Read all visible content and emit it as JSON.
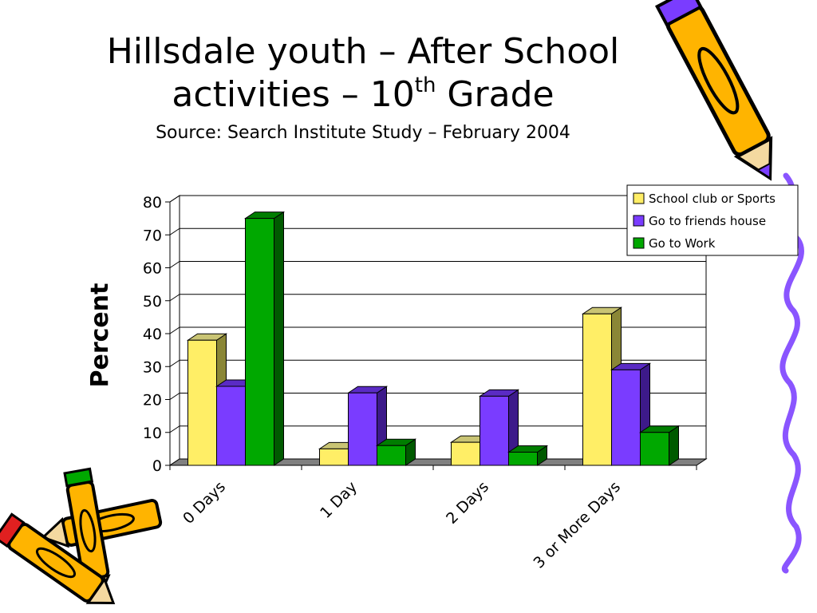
{
  "slide": {
    "title_line1": "Hillsdale youth – After School",
    "title_line2_pre": "activities – 10",
    "title_line2_sup": "th",
    "title_line2_post": " Grade",
    "source": "Source: Search Institute Study – February 2004"
  },
  "chart_data": {
    "type": "bar",
    "title": "",
    "ylabel": "Percent",
    "xlabel": "",
    "ylim": [
      0,
      80
    ],
    "yticks": [
      0,
      10,
      20,
      30,
      40,
      50,
      60,
      70,
      80
    ],
    "grid": true,
    "legend_position": "top-right",
    "categories": [
      "0 Days",
      "1 Day",
      "2 Days",
      "3 or More Days"
    ],
    "series": [
      {
        "name": "School club or Sports",
        "color": "#ffee66",
        "side": "#8a8636",
        "top": "#c9c474",
        "values": [
          38,
          5,
          7,
          46
        ]
      },
      {
        "name": "Go to friends house",
        "color": "#7a3cff",
        "side": "#3d1a8a",
        "top": "#5a2bc4",
        "values": [
          24,
          22,
          21,
          29
        ]
      },
      {
        "name": "Go to Work",
        "color": "#00a800",
        "side": "#005a00",
        "top": "#007d00",
        "values": [
          75,
          6,
          4,
          10
        ]
      }
    ]
  },
  "decorations": {
    "pencil_icons": [
      "pencil-top-right",
      "pencil-bottom-left-1",
      "pencil-bottom-left-2"
    ],
    "squiggle_color": "#8a55ff"
  }
}
